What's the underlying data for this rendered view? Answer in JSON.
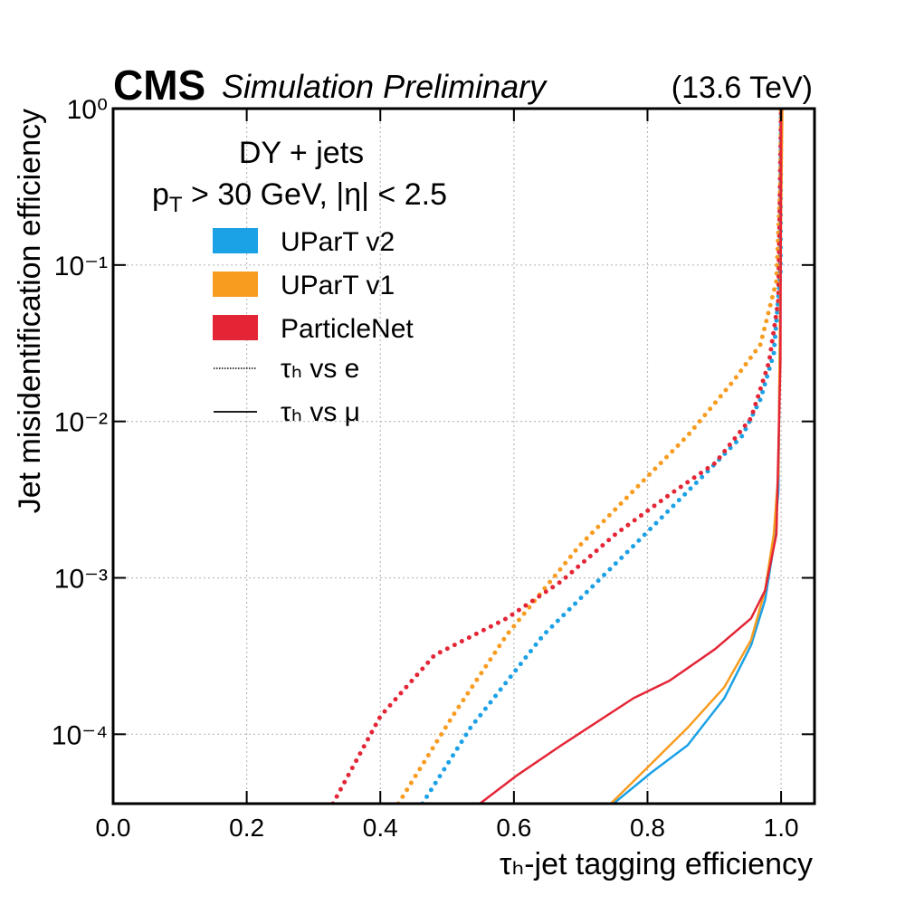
{
  "chart_data": {
    "type": "line",
    "experiment": "CMS",
    "status": "Simulation Preliminary",
    "energy": "(13.6 TeV)",
    "annotation": "DY + jets",
    "cut": {
      "symbol": "p",
      "subscript": "T",
      "text": " > 30 GeV, |η| < 2.5"
    },
    "x_label": "τₕ-jet tagging efficiency",
    "y_label": "Jet misidentification efficiency",
    "xlim": [
      0,
      1.05
    ],
    "ylim": [
      3.6e-05,
      1
    ],
    "log_y": true,
    "grid": true,
    "xticks": [
      {
        "value": 0,
        "label": "0.0"
      },
      0.2,
      0.4,
      0.6,
      0.8,
      {
        "value": 1,
        "label": "1.0"
      }
    ],
    "yticks": [
      {
        "value": 0.0001,
        "label": "10⁻⁴"
      },
      {
        "value": 0.001,
        "label": "10⁻³"
      },
      {
        "value": 0.01,
        "label": "10⁻²"
      },
      {
        "value": 0.1,
        "label": "10⁻¹"
      },
      {
        "value": 1,
        "label": "10⁰"
      }
    ],
    "legend": [
      {
        "label": "UParT v2",
        "color": "#1ba1e6"
      },
      {
        "label": "UParT v1",
        "color": "#f89c20"
      },
      {
        "label": "ParticleNet",
        "color": "#e42536"
      }
    ],
    "style_legend": [
      {
        "label": "τₕ vs e",
        "style": "dotted"
      },
      {
        "label": "τₕ vs μ",
        "style": "solid"
      }
    ],
    "series": [
      {
        "color": "#1ba1e6",
        "style": "dotted",
        "x": [
          0.463,
          0.535,
          0.644,
          0.779,
          0.888,
          0.942,
          0.969,
          0.989,
          0.999,
          1.0
        ],
        "values": [
          3.6e-05,
          0.00011,
          0.00043,
          0.0016,
          0.0047,
          0.0081,
          0.0138,
          0.027,
          0.09,
          1
        ]
      },
      {
        "color": "#f89c20",
        "style": "dotted",
        "x": [
          0.427,
          0.508,
          0.589,
          0.698,
          0.779,
          0.86,
          0.928,
          0.969,
          0.993,
          0.999,
          1.0
        ],
        "values": [
          3.6e-05,
          0.00013,
          0.00043,
          0.0016,
          0.0036,
          0.0081,
          0.018,
          0.031,
          0.079,
          0.34,
          1
        ]
      },
      {
        "color": "#e42536",
        "style": "dotted",
        "x": [
          0.329,
          0.4,
          0.481,
          0.589,
          0.671,
          0.752,
          0.833,
          0.901,
          0.955,
          0.982,
          0.996,
          1.0
        ],
        "values": [
          3.6e-05,
          0.00013,
          0.00032,
          0.00055,
          0.00095,
          0.0019,
          0.0034,
          0.0054,
          0.0105,
          0.024,
          0.06,
          1
        ]
      },
      {
        "color": "#1ba1e6",
        "style": "solid",
        "x": [
          0.749,
          0.806,
          0.86,
          0.915,
          0.955,
          0.976,
          0.989,
          0.996,
          0.999,
          1.0
        ],
        "values": [
          3.6e-05,
          5.7e-05,
          8.5e-05,
          0.00017,
          0.00037,
          0.00072,
          0.0016,
          0.0036,
          0.09,
          1
        ]
      },
      {
        "color": "#f89c20",
        "style": "solid",
        "x": [
          0.745,
          0.806,
          0.86,
          0.915,
          0.955,
          0.976,
          0.989,
          0.996,
          0.999,
          1.002
        ],
        "values": [
          3.6e-05,
          6.5e-05,
          0.00011,
          0.0002,
          0.0004,
          0.00083,
          0.0019,
          0.0047,
          0.09,
          1
        ]
      },
      {
        "color": "#e42536",
        "style": "solid",
        "x": [
          0.549,
          0.603,
          0.671,
          0.779,
          0.833,
          0.901,
          0.955,
          0.976,
          0.993,
          0.999,
          1.0
        ],
        "values": [
          3.6e-05,
          5.4e-05,
          8.5e-05,
          0.00017,
          0.00022,
          0.00035,
          0.00055,
          0.00083,
          0.0019,
          0.024,
          1
        ]
      }
    ]
  }
}
